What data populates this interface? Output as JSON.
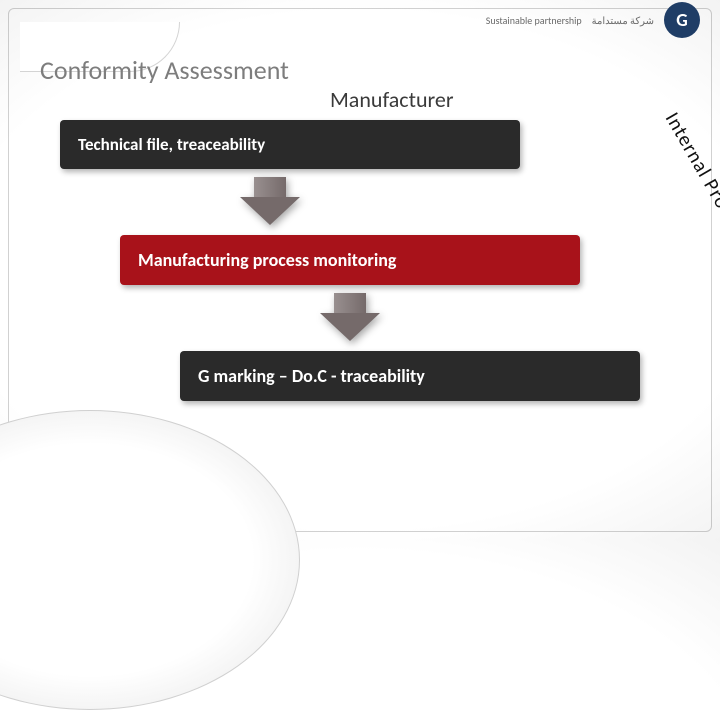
{
  "header": {
    "title": "Conformity Assessment",
    "subtitle": "Manufacturer",
    "topbar_left": "Sustainable partnership",
    "topbar_right": "شركة مستدامة",
    "logo_letter": "G",
    "logo_bg": "#1f3d66"
  },
  "colors": {
    "step_dark": "#2a2a2a",
    "step_red": "#a8121a",
    "arrow_body": "#756a6a",
    "arrow_light": "#999090",
    "title_color": "#7d7d7d",
    "subtitle_color": "#3a3a3a",
    "diag_color": "#111111"
  },
  "steps": [
    {
      "label": "Technical file, treaceability",
      "bg": "#2a2a2a",
      "bold": true
    },
    {
      "label": "Manufacturing process monitoring",
      "bg": "#a8121a",
      "bold": true
    },
    {
      "label": "G marking – Do.C - traceability",
      "bg": "#2a2a2a",
      "bold": true
    }
  ],
  "diagonal_label": "Internal Production Control"
}
